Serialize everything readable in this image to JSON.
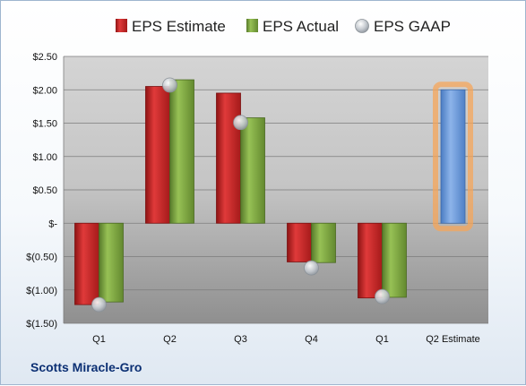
{
  "company": "Scotts Miracle-Gro",
  "chart_data": {
    "type": "bar",
    "title": "",
    "xlabel": "",
    "ylabel": "",
    "ylim": [
      -1.5,
      2.5
    ],
    "yticks": [
      {
        "value": 2.5,
        "label": "$2.50"
      },
      {
        "value": 2.0,
        "label": "$2.00"
      },
      {
        "value": 1.5,
        "label": "$1.50"
      },
      {
        "value": 1.0,
        "label": "$1.00"
      },
      {
        "value": 0.5,
        "label": "$0.50"
      },
      {
        "value": 0.0,
        "label": "$-"
      },
      {
        "value": -0.5,
        "label": "$(0.50)"
      },
      {
        "value": -1.0,
        "label": "$(1.00)"
      },
      {
        "value": -1.5,
        "label": "$(1.50)"
      }
    ],
    "categories": [
      "Q1",
      "Q2",
      "Q3",
      "Q4",
      "Q1",
      "Q2 Estimate"
    ],
    "legend_position": "top",
    "grid": true,
    "series": [
      {
        "name": "EPS Estimate",
        "type": "bar",
        "color": "#c0201f",
        "values": [
          -1.22,
          2.05,
          1.95,
          -0.58,
          -1.12,
          null
        ]
      },
      {
        "name": "EPS Actual",
        "type": "bar",
        "color": "#79a33a",
        "values": [
          -1.18,
          2.15,
          1.58,
          -0.59,
          -1.11,
          null
        ]
      },
      {
        "name": "EPS GAAP",
        "type": "scatter",
        "color": "#b0b6bd",
        "values": [
          -1.22,
          2.07,
          1.51,
          -0.67,
          -1.1,
          null
        ]
      },
      {
        "name": "Q2 Estimate",
        "type": "bar",
        "color": "#5b8fd6",
        "highlight_color": "#f5a55a",
        "values": [
          null,
          null,
          null,
          null,
          null,
          2.0
        ]
      }
    ]
  }
}
